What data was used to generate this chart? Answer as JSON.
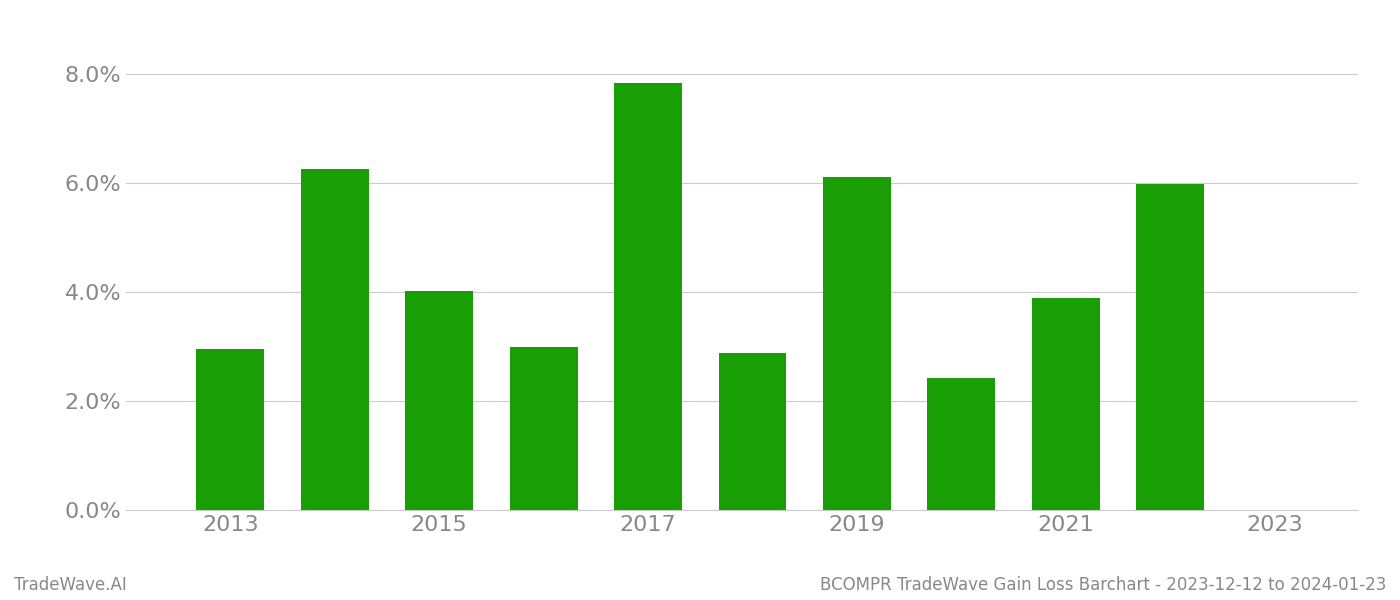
{
  "years": [
    2013,
    2014,
    2015,
    2016,
    2017,
    2018,
    2019,
    2020,
    2021,
    2022
  ],
  "values": [
    0.0295,
    0.0625,
    0.0402,
    0.0298,
    0.0782,
    0.0288,
    0.061,
    0.0242,
    0.0388,
    0.0597
  ],
  "bar_color": "#1a9e06",
  "ylim": [
    0,
    0.088
  ],
  "yticks": [
    0.0,
    0.02,
    0.04,
    0.06,
    0.08
  ],
  "xlim_left": 2012.0,
  "xlim_right": 2023.8,
  "xticks": [
    2013,
    2015,
    2017,
    2019,
    2021,
    2023
  ],
  "background_color": "#ffffff",
  "grid_color": "#cccccc",
  "tick_color": "#888888",
  "footer_left": "TradeWave.AI",
  "footer_right": "BCOMPR TradeWave Gain Loss Barchart - 2023-12-12 to 2024-01-23",
  "footer_fontsize": 12,
  "tick_fontsize": 16,
  "bar_width": 0.65
}
